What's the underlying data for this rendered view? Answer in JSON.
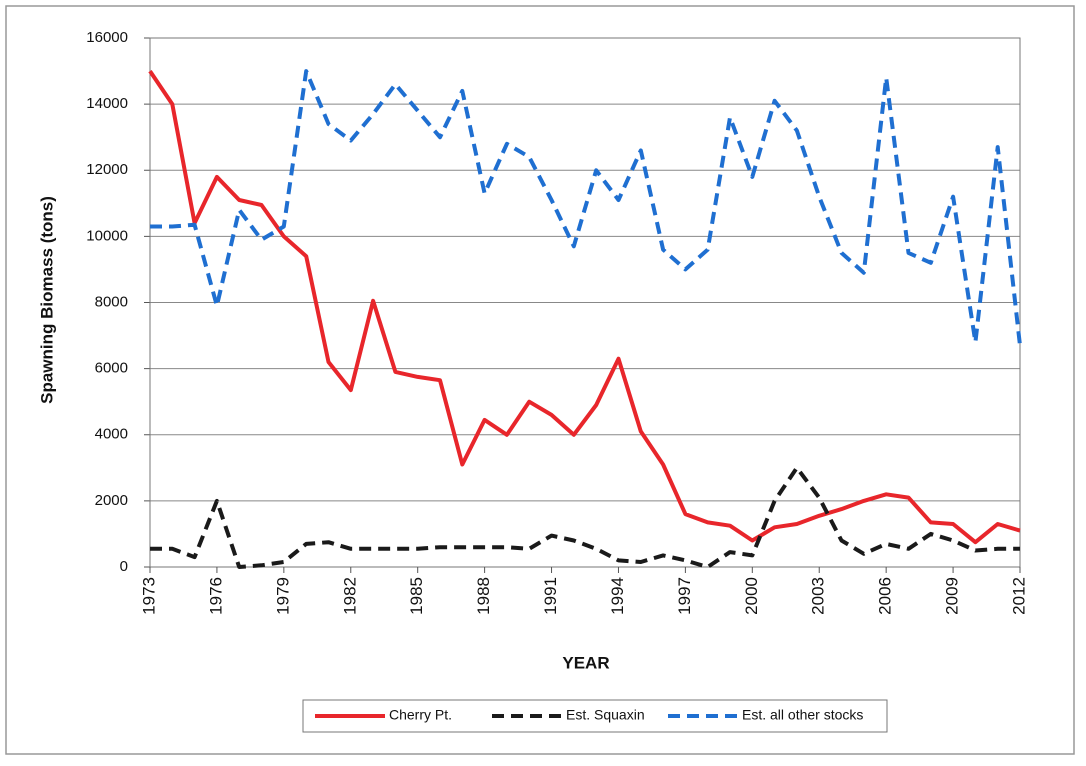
{
  "chart_data": {
    "type": "line",
    "xlabel": "YEAR",
    "ylabel": "Spawning Biomass (tons)",
    "x": [
      1973,
      1974,
      1975,
      1976,
      1977,
      1978,
      1979,
      1980,
      1981,
      1982,
      1983,
      1984,
      1985,
      1986,
      1987,
      1988,
      1989,
      1990,
      1991,
      1992,
      1993,
      1994,
      1995,
      1996,
      1997,
      1998,
      1999,
      2000,
      2001,
      2002,
      2003,
      2004,
      2005,
      2006,
      2007,
      2008,
      2009,
      2010,
      2011,
      2012
    ],
    "series": [
      {
        "name": "Cherry Pt.",
        "color": "#e8262b",
        "dash": false,
        "values": [
          15000,
          14000,
          10400,
          11800,
          11100,
          10950,
          10000,
          9400,
          6200,
          5350,
          8050,
          5900,
          5750,
          5650,
          3100,
          4450,
          4000,
          5000,
          4600,
          4000,
          4900,
          6300,
          4100,
          3100,
          1600,
          1350,
          1250,
          800,
          1200,
          1300,
          1550,
          1750,
          2000,
          2200,
          2100,
          1350,
          1300,
          750,
          1300,
          1100
        ]
      },
      {
        "name": "Est. Squaxin",
        "color": "#1a1a1a",
        "dash": true,
        "values": [
          550,
          550,
          300,
          2000,
          0,
          50,
          150,
          700,
          750,
          550,
          550,
          550,
          550,
          600,
          600,
          600,
          600,
          550,
          950,
          800,
          550,
          200,
          150,
          350,
          200,
          0,
          450,
          350,
          2000,
          3000,
          2100,
          800,
          400,
          700,
          550,
          1000,
          800,
          500,
          550,
          550
        ]
      },
      {
        "name": "Est. all other stocks",
        "color": "#1f6fd1",
        "dash": true,
        "values": [
          10300,
          10300,
          10350,
          7900,
          10800,
          9900,
          10300,
          15000,
          13400,
          12900,
          13700,
          14600,
          13800,
          13000,
          14400,
          11300,
          12800,
          12400,
          11100,
          9700,
          12000,
          11100,
          12600,
          9600,
          9000,
          9600,
          13600,
          11800,
          14100,
          13200,
          11200,
          9500,
          8900,
          14800,
          9500,
          9200,
          11200,
          6800,
          12700,
          6700
        ]
      }
    ],
    "xlim": [
      1973,
      2012
    ],
    "xticks": [
      1973,
      1976,
      1979,
      1982,
      1985,
      1988,
      1991,
      1994,
      1997,
      2000,
      2003,
      2006,
      2009,
      2012
    ],
    "ylim": [
      0,
      16000
    ],
    "yticks": [
      0,
      2000,
      4000,
      6000,
      8000,
      10000,
      12000,
      14000,
      16000
    ],
    "grid": true,
    "legend": "bottom"
  }
}
